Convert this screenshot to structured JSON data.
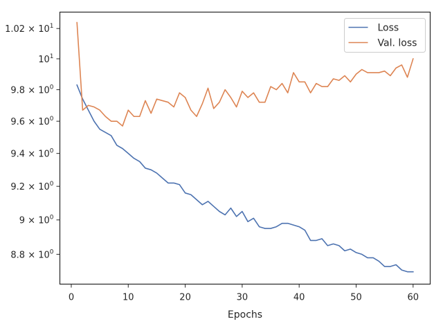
{
  "chart_data": {
    "type": "line",
    "xlabel": "Epochs",
    "ylabel": "",
    "title": "",
    "yscale": "log",
    "xlim": [
      -2,
      63
    ],
    "ylim": [
      8.63,
      10.31
    ],
    "grid": false,
    "legend_position": "top-right",
    "xticks": [
      0,
      10,
      20,
      30,
      40,
      50,
      60
    ],
    "yticks": [
      {
        "value": 8.8,
        "mantissa": "8.8",
        "base": "10",
        "exp": "0"
      },
      {
        "value": 9.0,
        "mantissa": "9",
        "base": "10",
        "exp": "0"
      },
      {
        "value": 9.2,
        "mantissa": "9.2",
        "base": "10",
        "exp": "0"
      },
      {
        "value": 9.4,
        "mantissa": "9.4",
        "base": "10",
        "exp": "0"
      },
      {
        "value": 9.6,
        "mantissa": "9.6",
        "base": "10",
        "exp": "0"
      },
      {
        "value": 9.8,
        "mantissa": "9.8",
        "base": "10",
        "exp": "0"
      },
      {
        "value": 10.0,
        "mantissa": "",
        "base": "10",
        "exp": "1"
      },
      {
        "value": 10.2,
        "mantissa": "1.02",
        "base": "10",
        "exp": "1"
      }
    ],
    "x": [
      1,
      2,
      3,
      4,
      5,
      6,
      7,
      8,
      9,
      10,
      11,
      12,
      13,
      14,
      15,
      16,
      17,
      18,
      19,
      20,
      21,
      22,
      23,
      24,
      25,
      26,
      27,
      28,
      29,
      30,
      31,
      32,
      33,
      34,
      35,
      36,
      37,
      38,
      39,
      40,
      41,
      42,
      43,
      44,
      45,
      46,
      47,
      48,
      49,
      50,
      51,
      52,
      53,
      54,
      55,
      56,
      57,
      58,
      59,
      60
    ],
    "series": [
      {
        "name": "Loss",
        "color": "#4c72b0",
        "values": [
          9.83,
          9.74,
          9.67,
          9.6,
          9.55,
          9.53,
          9.51,
          9.45,
          9.43,
          9.4,
          9.37,
          9.35,
          9.31,
          9.3,
          9.28,
          9.25,
          9.22,
          9.22,
          9.21,
          9.16,
          9.15,
          9.12,
          9.09,
          9.11,
          9.08,
          9.05,
          9.03,
          9.07,
          9.02,
          9.05,
          8.99,
          9.01,
          8.96,
          8.95,
          8.95,
          8.96,
          8.98,
          8.98,
          8.97,
          8.96,
          8.94,
          8.88,
          8.88,
          8.89,
          8.85,
          8.86,
          8.85,
          8.82,
          8.83,
          8.81,
          8.8,
          8.78,
          8.78,
          8.76,
          8.73,
          8.73,
          8.74,
          8.71,
          8.7,
          8.7
        ]
      },
      {
        "name": "Val. loss",
        "color": "#dd8452",
        "values": [
          10.24,
          9.67,
          9.7,
          9.69,
          9.67,
          9.63,
          9.6,
          9.6,
          9.57,
          9.67,
          9.63,
          9.63,
          9.73,
          9.65,
          9.74,
          9.73,
          9.72,
          9.69,
          9.78,
          9.75,
          9.67,
          9.63,
          9.71,
          9.81,
          9.68,
          9.72,
          9.8,
          9.75,
          9.69,
          9.79,
          9.75,
          9.78,
          9.72,
          9.72,
          9.82,
          9.8,
          9.84,
          9.78,
          9.91,
          9.85,
          9.85,
          9.78,
          9.84,
          9.82,
          9.82,
          9.87,
          9.86,
          9.89,
          9.85,
          9.9,
          9.93,
          9.91,
          9.91,
          9.91,
          9.92,
          9.89,
          9.94,
          9.96,
          9.88,
          10.0
        ]
      }
    ]
  }
}
